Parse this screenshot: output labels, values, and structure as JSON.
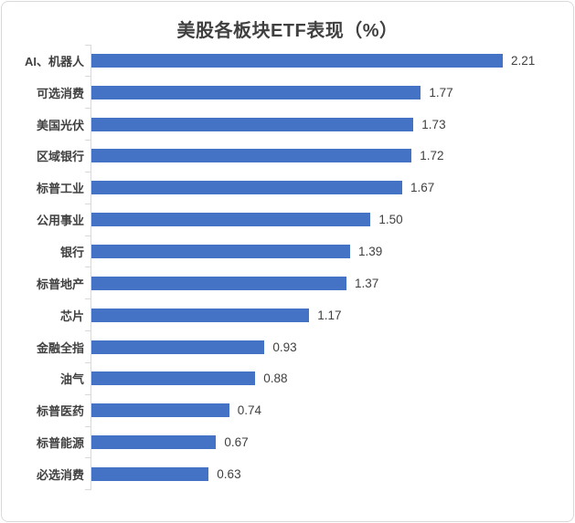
{
  "title": "美股各板块ETF表现（%）",
  "chart_data": {
    "type": "bar",
    "orientation": "horizontal",
    "title": "美股各板块ETF表现（%）",
    "categories": [
      "AI、机器人",
      "可选消费",
      "美国光伏",
      "区域银行",
      "标普工业",
      "公用事业",
      "银行",
      "标普地产",
      "芯片",
      "金融全指",
      "油气",
      "标普医药",
      "标普能源",
      "必选消费"
    ],
    "values": [
      2.21,
      1.77,
      1.73,
      1.72,
      1.67,
      1.5,
      1.39,
      1.37,
      1.17,
      0.93,
      0.88,
      0.74,
      0.67,
      0.63
    ],
    "value_labels": [
      "2.21",
      "1.77",
      "1.73",
      "1.72",
      "1.67",
      "1.50",
      "1.39",
      "1.37",
      "1.17",
      "0.93",
      "0.88",
      "0.74",
      "0.67",
      "0.63"
    ],
    "xlabel": "",
    "ylabel": "",
    "xlim": [
      0,
      2.21
    ],
    "grid": false,
    "legend": false,
    "bar_color": "#4472c4",
    "axis_color": "#d9d9d9",
    "text_color": "#404040",
    "data_labels_shown": true
  }
}
